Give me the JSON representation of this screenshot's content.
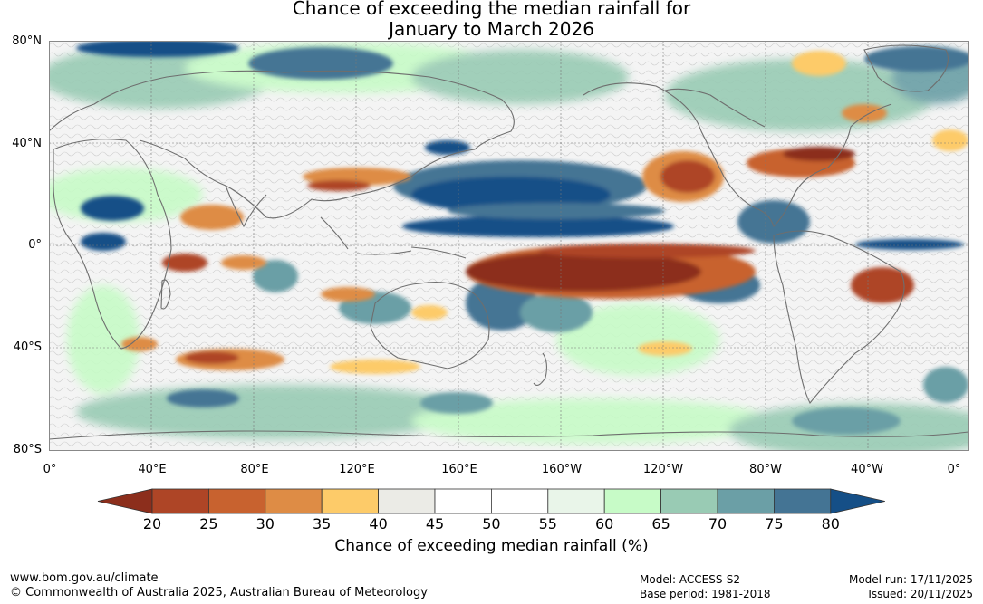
{
  "title": {
    "line1": "Chance of exceeding the median rainfall for",
    "line2": "January to March 2026"
  },
  "map": {
    "lat_labels": [
      "80°N",
      "40°N",
      "0°",
      "40°S",
      "80°S"
    ],
    "lon_labels": [
      "0°",
      "40°E",
      "80°E",
      "120°E",
      "160°E",
      "160°W",
      "120°W",
      "80°W",
      "40°W",
      "0°"
    ]
  },
  "legend": {
    "ticks": [
      "20",
      "25",
      "30",
      "35",
      "40",
      "45",
      "50",
      "55",
      "60",
      "65",
      "70",
      "75",
      "80"
    ],
    "colors": [
      "#8c2e1c",
      "#ae4526",
      "#c8622f",
      "#de8c45",
      "#fdcb69",
      "#ebebe6",
      "#ffffff",
      "#ffffff",
      "#e9f5e9",
      "#c7fbc7",
      "#99cbb4",
      "#6b9fa6",
      "#447494",
      "#154f87"
    ],
    "label": "Chance of exceeding median rainfall (%)"
  },
  "footer": {
    "url": "www.bom.gov.au/climate",
    "copyright": "© Commonwealth of Australia 2025, Australian Bureau of Meteorology",
    "model": "Model: ACCESS-S2",
    "base_period": "Base period: 1981-2018",
    "model_run": "Model run: 17/11/2025",
    "issued": "Issued: 20/11/2025"
  }
}
